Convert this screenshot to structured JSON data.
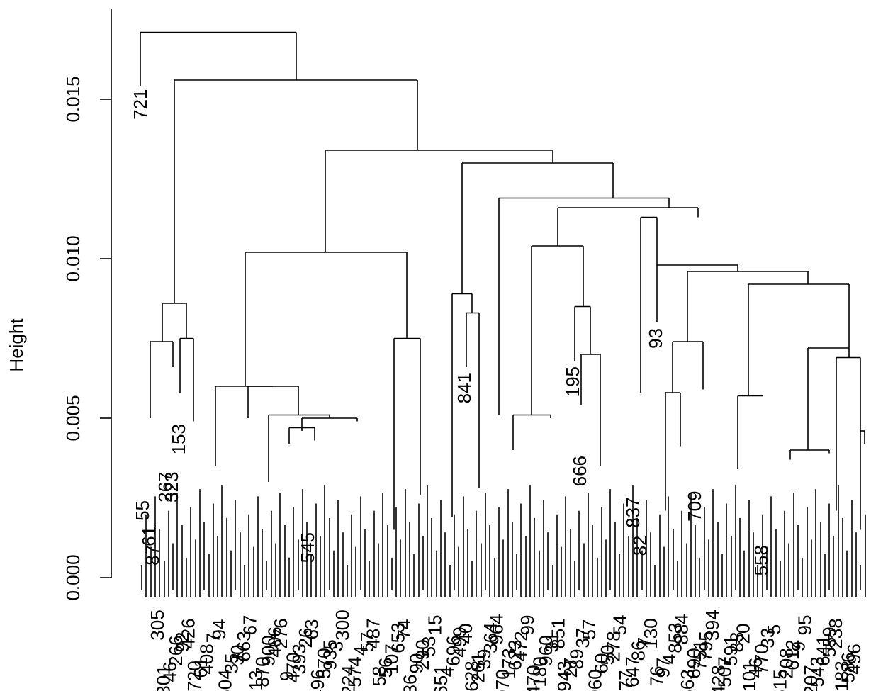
{
  "chart_data": {
    "type": "dendrogram",
    "ylabel": "Height",
    "ylim": [
      0,
      0.0175
    ],
    "yticks": [
      {
        "value": 0.0,
        "label": "0.000"
      },
      {
        "value": 0.005,
        "label": "0.005"
      },
      {
        "value": 0.01,
        "label": "0.010"
      },
      {
        "value": 0.015,
        "label": "0.015"
      }
    ],
    "root_height": 0.0171,
    "top_merges": [
      {
        "height": 0.0171,
        "description": "singleton 721 joins rest"
      },
      {
        "height": 0.0156,
        "description": "left group (55, 61, 87, 267, 323, 153) joins main cluster"
      },
      {
        "height": 0.0134
      },
      {
        "height": 0.013
      },
      {
        "height": 0.0119
      },
      {
        "height": 0.0116
      },
      {
        "height": 0.0113
      },
      {
        "height": 0.0104
      },
      {
        "height": 0.0102
      },
      {
        "height": 0.0098
      },
      {
        "height": 0.0096
      },
      {
        "height": 0.0092
      },
      {
        "height": 0.0089
      },
      {
        "height": 0.0086
      },
      {
        "height": 0.0085
      },
      {
        "height": 0.0083
      },
      {
        "height": 0.0075
      },
      {
        "height": 0.0074
      },
      {
        "height": 0.0074
      },
      {
        "height": 0.0072
      }
    ],
    "annotated_leaves": [
      {
        "label": "721",
        "height": 0.0155
      },
      {
        "label": "93",
        "height": 0.008
      },
      {
        "label": "841",
        "height": 0.0066
      },
      {
        "label": "195",
        "height": 0.0068
      },
      {
        "label": "666",
        "height": 0.004
      },
      {
        "label": "837",
        "height": 0.0027
      },
      {
        "label": "709",
        "height": 0.0029
      },
      {
        "label": "153",
        "height": 0.005
      },
      {
        "label": "323",
        "height": 0.0035
      },
      {
        "label": "267",
        "height": 0.0035
      },
      {
        "label": "55",
        "height": 0.0026
      },
      {
        "label": "61",
        "height": 0.0018
      },
      {
        "label": "87",
        "height": 0.0012
      },
      {
        "label": "545",
        "height": 0.0016
      },
      {
        "label": "558",
        "height": 0.0012
      },
      {
        "label": "82",
        "height": 0.0015
      }
    ],
    "leaf_labels": [
      "305",
      "301",
      "46",
      "266",
      "92",
      "426",
      "720",
      "61",
      "408",
      "7",
      "94",
      "604",
      "35",
      "30",
      "663",
      "67",
      "13",
      "870",
      "900",
      "406",
      "276",
      "9",
      "470",
      "393",
      "26",
      "63",
      "496",
      "570",
      "935",
      "3",
      "300",
      "224",
      "574",
      "4",
      "57",
      "487",
      "58",
      "56",
      "107",
      "653",
      "74",
      "36",
      "90",
      "290",
      "53",
      "15",
      "651",
      "4",
      "696",
      "499",
      "40",
      "628",
      "261",
      "39",
      "364",
      "964",
      "970",
      "173",
      "623",
      "472",
      "99",
      "470",
      "180",
      "960",
      "31",
      "851",
      "943",
      "27",
      "89",
      "37",
      "57",
      "960",
      "60",
      "50",
      "278",
      "54",
      "77",
      "647",
      "86",
      "7",
      "130",
      "76",
      "97",
      "4",
      "853",
      "884",
      "663",
      "690",
      "751",
      "795",
      "394",
      "428",
      "507",
      "591",
      "83",
      "20",
      "101",
      "46",
      "770",
      "33",
      "5",
      "615",
      "208",
      "612",
      "9",
      "95",
      "207",
      "543",
      "641",
      "559",
      "238",
      "183",
      "586",
      "496"
    ]
  }
}
